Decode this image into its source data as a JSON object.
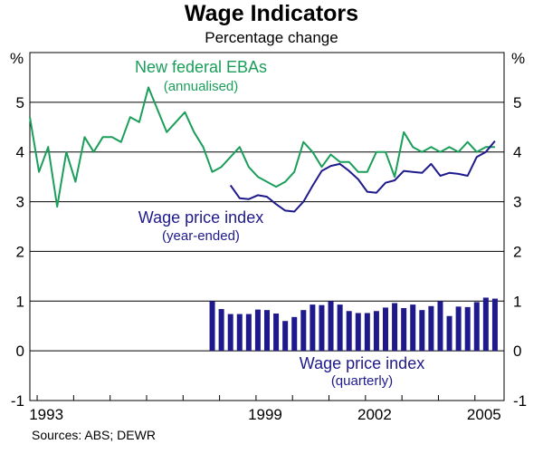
{
  "chart_data": {
    "type": "line",
    "title": "Wage Indicators",
    "subtitle": "Percentage change",
    "y_unit_left": "%",
    "y_unit_right": "%",
    "ylim": [
      -1,
      6
    ],
    "yticks": [
      -1,
      0,
      1,
      2,
      3,
      4,
      5
    ],
    "xlim": [
      1992.75,
      2005.75
    ],
    "xticks": [
      {
        "value": 1993.2,
        "label": "1993"
      },
      {
        "value": 1999.2,
        "label": "1999"
      },
      {
        "value": 2002.2,
        "label": "2002"
      },
      {
        "value": 2005.2,
        "label": "2005"
      }
    ],
    "source": "Sources: ABS; DEWR",
    "series": [
      {
        "name": "New federal EBAs",
        "label_line1": "New federal EBAs",
        "label_line2": "(annualised)",
        "type": "line",
        "color": "#1a9e5a",
        "x": [
          1992.75,
          1993.0,
          1993.25,
          1993.5,
          1993.75,
          1994.0,
          1994.25,
          1994.5,
          1994.75,
          1995.0,
          1995.25,
          1995.5,
          1995.75,
          1996.0,
          1996.5,
          1997.0,
          1997.25,
          1997.5,
          1997.75,
          1998.0,
          1998.25,
          1998.5,
          1998.75,
          1999.0,
          1999.25,
          1999.5,
          1999.75,
          2000.0,
          2000.25,
          2000.5,
          2000.75,
          2001.0,
          2001.25,
          2001.5,
          2001.75,
          2002.0,
          2002.25,
          2002.5,
          2002.75,
          2003.0,
          2003.25,
          2003.5,
          2003.75,
          2004.0,
          2004.25,
          2004.5,
          2004.75,
          2005.0,
          2005.25,
          2005.5
        ],
        "values": [
          4.7,
          3.6,
          4.1,
          2.9,
          4.0,
          3.4,
          4.3,
          4.0,
          4.3,
          4.3,
          4.2,
          4.7,
          4.6,
          5.3,
          4.4,
          4.8,
          4.4,
          4.1,
          3.6,
          3.7,
          3.9,
          4.1,
          3.7,
          3.5,
          3.4,
          3.3,
          3.4,
          3.6,
          4.2,
          4.0,
          3.7,
          3.95,
          3.8,
          3.8,
          3.6,
          3.6,
          4.0,
          4.0,
          3.5,
          4.4,
          4.1,
          4.0,
          4.1,
          4.0,
          4.1,
          4.0,
          4.2,
          4.0,
          4.1,
          4.1
        ]
      },
      {
        "name": "Wage price index (year-ended)",
        "label_line1": "Wage price index",
        "label_line2": "(year-ended)",
        "type": "line",
        "color": "#1f1a8c",
        "x": [
          1998.25,
          1998.5,
          1998.75,
          1999.0,
          1999.25,
          1999.5,
          1999.75,
          2000.0,
          2000.25,
          2000.5,
          2000.75,
          2001.0,
          2001.25,
          2001.5,
          2001.75,
          2002.0,
          2002.25,
          2002.5,
          2002.75,
          2003.0,
          2003.25,
          2003.5,
          2003.75,
          2004.0,
          2004.25,
          2004.5,
          2004.75,
          2005.0,
          2005.25,
          2005.5
        ],
        "values": [
          3.33,
          3.07,
          3.05,
          3.13,
          3.1,
          2.95,
          2.82,
          2.8,
          3.0,
          3.32,
          3.62,
          3.72,
          3.76,
          3.62,
          3.45,
          3.2,
          3.18,
          3.38,
          3.43,
          3.62,
          3.6,
          3.58,
          3.76,
          3.52,
          3.58,
          3.56,
          3.52,
          3.9,
          4.0,
          4.22
        ]
      },
      {
        "name": "Wage price index (quarterly)",
        "label_line1": "Wage price index",
        "label_line2": "(quarterly)",
        "type": "bar",
        "color": "#1f1a8c",
        "x": [
          1997.75,
          1998.0,
          1998.25,
          1998.5,
          1998.75,
          1999.0,
          1999.25,
          1999.5,
          1999.75,
          2000.0,
          2000.25,
          2000.5,
          2000.75,
          2001.0,
          2001.25,
          2001.5,
          2001.75,
          2002.0,
          2002.25,
          2002.5,
          2002.75,
          2003.0,
          2003.25,
          2003.5,
          2003.75,
          2004.0,
          2004.25,
          2004.5,
          2004.75,
          2005.0,
          2005.25,
          2005.5
        ],
        "values": [
          1.0,
          0.84,
          0.74,
          0.74,
          0.74,
          0.83,
          0.82,
          0.75,
          0.6,
          0.68,
          0.82,
          0.93,
          0.92,
          1.0,
          0.93,
          0.8,
          0.76,
          0.76,
          0.8,
          0.87,
          0.96,
          0.86,
          0.93,
          0.82,
          0.9,
          1.0,
          0.7,
          0.89,
          0.88,
          0.98,
          1.07,
          1.05
        ]
      }
    ]
  }
}
